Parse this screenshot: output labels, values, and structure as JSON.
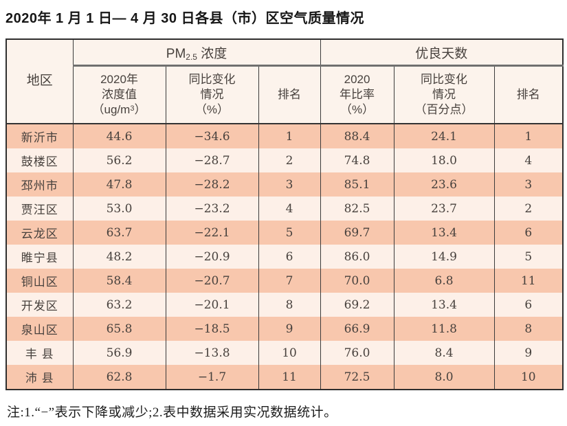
{
  "title": "2020年 1 月 1 日— 4 月 30 日各县（市）区空气质量情况",
  "colors": {
    "row_dark": "#f8c7ad",
    "row_light": "#fdf0e8",
    "header_bg": "#fcf3ec",
    "outer_border": "#2e2e2e",
    "inner_border": "#3a3a3a",
    "group_divider": "#6f6f6f",
    "text": "#47413d"
  },
  "table": {
    "group_headers": {
      "region": "地区",
      "pm25": {
        "pre": "PM",
        "sub": "2.5",
        "post": " 浓度"
      },
      "good_days": "优良天数"
    },
    "columns": {
      "conc": {
        "line1": "2020年",
        "line2": "浓度值",
        "l3_pre": "（ug/m",
        "l3_sup": "3",
        "l3_post": "）"
      },
      "conc_change": {
        "line1": "同比变化",
        "line2": "情况",
        "line3": "（%）"
      },
      "rank_pm": "排名",
      "ratio": {
        "line1": "2020",
        "line2": "年比率",
        "line3": "（%）"
      },
      "ratio_change": {
        "line1": "同比变化",
        "line2": "情况",
        "line3": "（百分点）"
      },
      "rank_days": "排名"
    },
    "rows": [
      [
        "新沂市",
        "44.6",
        "−34.6",
        "1",
        "88.4",
        "24.1",
        "1"
      ],
      [
        "鼓楼区",
        "56.2",
        "−28.7",
        "2",
        "74.8",
        "18.0",
        "4"
      ],
      [
        "邳州市",
        "47.8",
        "−28.2",
        "3",
        "85.1",
        "23.6",
        "3"
      ],
      [
        "贾汪区",
        "53.0",
        "−23.2",
        "4",
        "82.5",
        "23.7",
        "2"
      ],
      [
        "云龙区",
        "63.7",
        "−22.1",
        "5",
        "69.7",
        "13.4",
        "6"
      ],
      [
        "睢宁县",
        "48.2",
        "−20.9",
        "6",
        "86.0",
        "14.9",
        "5"
      ],
      [
        "铜山区",
        "58.4",
        "−20.7",
        "7",
        "70.0",
        "6.8",
        "11"
      ],
      [
        "开发区",
        "63.2",
        "−20.1",
        "8",
        "69.2",
        "13.4",
        "6"
      ],
      [
        "泉山区",
        "65.8",
        "−18.5",
        "9",
        "66.9",
        "11.8",
        "8"
      ],
      [
        "丰 县",
        "56.9",
        "−13.8",
        "10",
        "76.0",
        "8.4",
        "9"
      ],
      [
        "沛 县",
        "62.8",
        "−1.7",
        "11",
        "72.5",
        "8.0",
        "10"
      ]
    ]
  },
  "note": "注:1.“−”表示下降或减少;2.表中数据采用实况数据统计。"
}
